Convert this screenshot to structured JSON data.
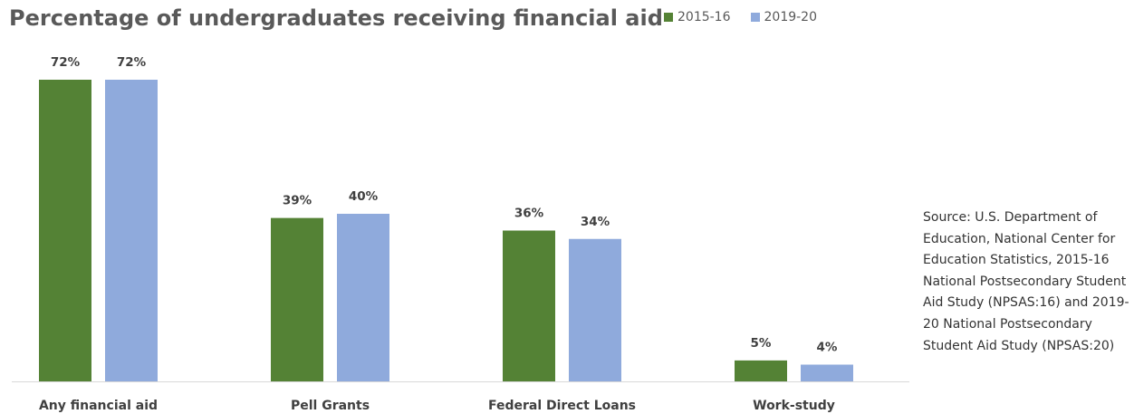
{
  "chart_data": {
    "type": "bar",
    "title": "Percentage of undergraduates receiving financial aid",
    "categories": [
      "Any financial aid",
      "Pell Grants",
      "Federal Direct Loans",
      "Work-study"
    ],
    "series": [
      {
        "name": "2015-16",
        "values": [
          72,
          39,
          36,
          5
        ],
        "labels": [
          "72%",
          "39%",
          "36%",
          "5%"
        ],
        "color": "#548235"
      },
      {
        "name": "2019-20",
        "values": [
          72,
          40,
          34,
          4
        ],
        "labels": [
          "72%",
          "40%",
          "34%",
          "4%"
        ],
        "color": "#8faadc"
      }
    ],
    "ylim": [
      0,
      72
    ],
    "grid": false,
    "legend_position": "top"
  },
  "source_note": "Source: U.S. Department of Education, National Center for Education Statistics, 2015-16 National Postsecondary Student Aid Study (NPSAS:16) and 2019-20 National Postsecondary Student Aid Study (NPSAS:20)",
  "axis_color": "#d9d9d9"
}
